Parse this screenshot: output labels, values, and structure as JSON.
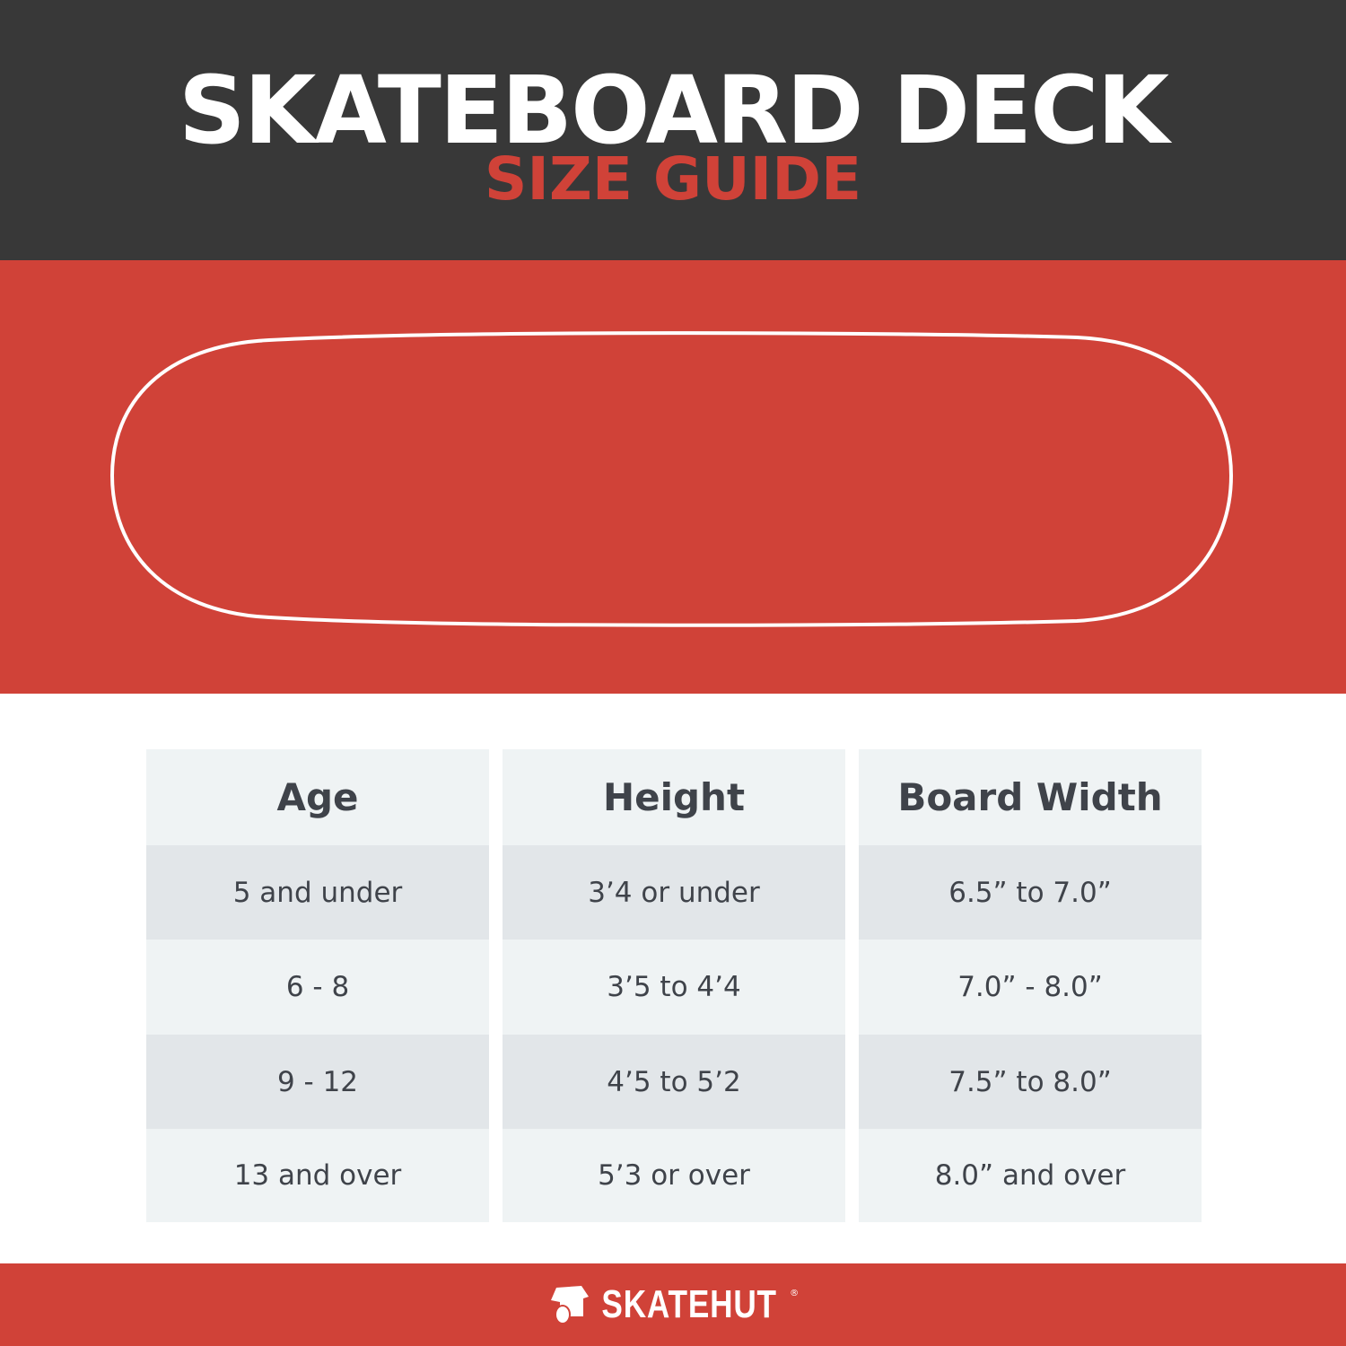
{
  "header": {
    "title": "SKATEBOARD DECK",
    "subtitle": "SIZE GUIDE"
  },
  "colors": {
    "dark": "#383838",
    "red": "#d04238",
    "text": "#3f434a"
  },
  "table": {
    "headers": [
      "Age",
      "Height",
      "Board Width"
    ],
    "rows": [
      [
        "5 and under",
        "3’4 or under",
        "6.5” to 7.0”"
      ],
      [
        "6 - 8",
        "3’5 to 4’4",
        "7.0” - 8.0”"
      ],
      [
        "9 - 12",
        "4’5 to 5’2",
        "7.5” to 8.0”"
      ],
      [
        "13 and over",
        "5’3 or over",
        "8.0” and over"
      ]
    ]
  },
  "footer": {
    "logo": "SKATEHUT",
    "registered": "®"
  }
}
